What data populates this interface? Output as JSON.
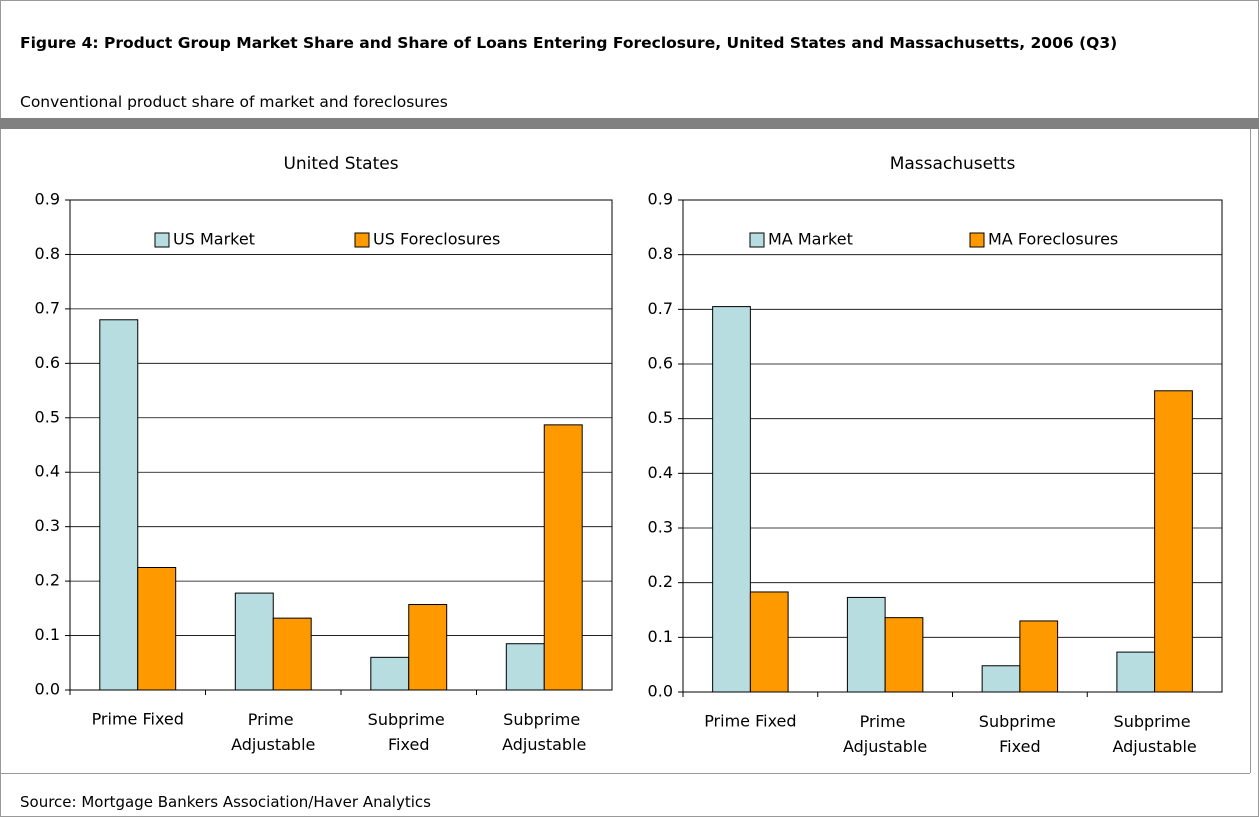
{
  "header": {
    "title": "Figure 4: Product Group Market Share and Share of Loans Entering Foreclosure, United States and Massachusetts, 2006 (Q3)",
    "subtitle": "Conventional product share of market and foreclosures"
  },
  "source": "Source: Mortgage Bankers Association/Haver Analytics",
  "chart_data": [
    {
      "type": "bar",
      "title": "United States",
      "categories": [
        "Prime Fixed",
        "Prime Adjustable",
        "Subprime Fixed",
        "Subprime Adjustable"
      ],
      "series": [
        {
          "name": "US Market",
          "color": "#b7dde0",
          "values": [
            0.68,
            0.178,
            0.06,
            0.085
          ]
        },
        {
          "name": "US Foreclosures",
          "color": "#ff9900",
          "values": [
            0.225,
            0.132,
            0.157,
            0.487
          ]
        }
      ],
      "ylim": [
        0,
        0.9
      ],
      "yticks": [
        {
          "value": 0,
          "label": "0.0"
        },
        0.1,
        0.2,
        0.3,
        0.4,
        0.5,
        0.6,
        0.7,
        0.8,
        0.9
      ],
      "grid": true,
      "legend": "top"
    },
    {
      "type": "bar",
      "title": "Massachusetts",
      "categories": [
        "Prime Fixed",
        "Prime Adjustable",
        "Subprime Fixed",
        "Subprime Adjustable"
      ],
      "series": [
        {
          "name": "MA Market",
          "color": "#b7dde0",
          "values": [
            0.705,
            0.173,
            0.048,
            0.073
          ]
        },
        {
          "name": "MA Foreclosures",
          "color": "#ff9900",
          "values": [
            0.183,
            0.136,
            0.13,
            0.551
          ]
        }
      ],
      "ylim": [
        0,
        0.9
      ],
      "yticks": [
        {
          "value": 0,
          "label": "0.0"
        },
        0.1,
        0.2,
        0.3,
        0.4,
        0.5,
        0.6,
        0.7,
        0.8,
        0.9
      ],
      "grid": true,
      "legend": "top"
    }
  ]
}
